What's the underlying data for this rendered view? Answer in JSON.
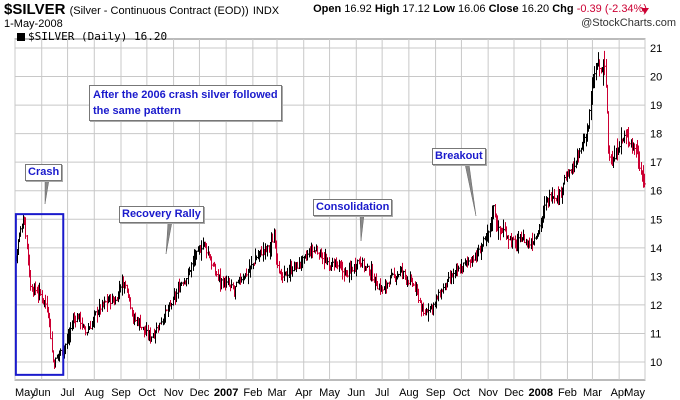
{
  "header": {
    "symbol": "$SILVER",
    "name": "(Silver - Continuous Contract (EOD))",
    "exchange": "INDX",
    "date": "1-May-2008",
    "open_label": "Open",
    "open": "16.92",
    "high_label": "High",
    "high": "17.12",
    "low_label": "Low",
    "low": "16.06",
    "close_label": "Close",
    "close": "16.20",
    "chg_label": "Chg",
    "chg": "-0.39 (-2.34%)",
    "credit": "@StockCharts.com"
  },
  "legend": {
    "text": "$SILVER (Daily) 16.20"
  },
  "annotations": {
    "note": [
      "After the 2006 crash silver followed",
      "the same pattern"
    ],
    "crash": "Crash",
    "recovery": "Recovery Rally",
    "consolidation": "Consolidation",
    "breakout": "Breakout"
  },
  "colors": {
    "up_bar": "#000000",
    "down_bar": "#cc0033",
    "grid": "#c8c8c8",
    "box": "#1a1acc",
    "annotation_text": "#1a1acc",
    "change_down": "#cc0033"
  },
  "chart_data": {
    "type": "line",
    "title": "$SILVER (Daily) 16.20",
    "xlabel": "",
    "ylabel": "",
    "x_start": "2006-05-01",
    "x_end": "2008-05-01",
    "ylim": [
      9.5,
      21.5
    ],
    "y_ticks": [
      10,
      11,
      12,
      13,
      14,
      15,
      16,
      17,
      18,
      19,
      20,
      21
    ],
    "x_tick_labels": [
      "May",
      "Jun",
      "Jul",
      "Aug",
      "Sep",
      "Oct",
      "Nov",
      "Dec",
      "2007",
      "Feb",
      "Mar",
      "Apr",
      "May",
      "Jun",
      "Jul",
      "Aug",
      "Sep",
      "Oct",
      "Nov",
      "Dec",
      "2008",
      "Feb",
      "Mar",
      "Apr",
      "May"
    ],
    "x_tick_dates": [
      "2006-05-01",
      "2006-06-01",
      "2006-07-01",
      "2006-08-01",
      "2006-09-01",
      "2006-10-01",
      "2006-11-01",
      "2006-12-01",
      "2007-01-01",
      "2007-02-01",
      "2007-03-01",
      "2007-04-01",
      "2007-05-01",
      "2007-06-01",
      "2007-07-01",
      "2007-08-01",
      "2007-09-01",
      "2007-10-01",
      "2007-11-01",
      "2007-12-01",
      "2008-01-01",
      "2008-02-01",
      "2008-03-01",
      "2008-04-01",
      "2008-05-01"
    ],
    "bold_tick_labels": [
      "2007",
      "2008"
    ],
    "grid": true,
    "series": [
      {
        "values": [
          {
            "date": "2006-05-01",
            "value": 13.6
          },
          {
            "date": "2006-05-05",
            "value": 14.3
          },
          {
            "date": "2006-05-11",
            "value": 15.1
          },
          {
            "date": "2006-05-15",
            "value": 14.0
          },
          {
            "date": "2006-05-19",
            "value": 12.6
          },
          {
            "date": "2006-05-26",
            "value": 12.5
          },
          {
            "date": "2006-06-01",
            "value": 12.3
          },
          {
            "date": "2006-06-06",
            "value": 12.0
          },
          {
            "date": "2006-06-09",
            "value": 11.7
          },
          {
            "date": "2006-06-13",
            "value": 10.2
          },
          {
            "date": "2006-06-15",
            "value": 9.9
          },
          {
            "date": "2006-06-20",
            "value": 10.3
          },
          {
            "date": "2006-06-26",
            "value": 10.4
          },
          {
            "date": "2006-07-03",
            "value": 11.0
          },
          {
            "date": "2006-07-07",
            "value": 11.5
          },
          {
            "date": "2006-07-14",
            "value": 11.6
          },
          {
            "date": "2006-07-21",
            "value": 11.0
          },
          {
            "date": "2006-07-28",
            "value": 11.3
          },
          {
            "date": "2006-08-04",
            "value": 11.8
          },
          {
            "date": "2006-08-11",
            "value": 12.0
          },
          {
            "date": "2006-08-18",
            "value": 12.2
          },
          {
            "date": "2006-08-25",
            "value": 12.1
          },
          {
            "date": "2006-09-01",
            "value": 12.8
          },
          {
            "date": "2006-09-08",
            "value": 12.6
          },
          {
            "date": "2006-09-15",
            "value": 11.5
          },
          {
            "date": "2006-09-22",
            "value": 11.4
          },
          {
            "date": "2006-09-29",
            "value": 11.0
          },
          {
            "date": "2006-10-06",
            "value": 10.9
          },
          {
            "date": "2006-10-13",
            "value": 11.2
          },
          {
            "date": "2006-10-20",
            "value": 11.6
          },
          {
            "date": "2006-10-27",
            "value": 11.9
          },
          {
            "date": "2006-11-03",
            "value": 12.3
          },
          {
            "date": "2006-11-10",
            "value": 12.8
          },
          {
            "date": "2006-11-17",
            "value": 13.0
          },
          {
            "date": "2006-11-24",
            "value": 13.6
          },
          {
            "date": "2006-12-01",
            "value": 13.9
          },
          {
            "date": "2006-12-05",
            "value": 14.2
          },
          {
            "date": "2006-12-11",
            "value": 13.8
          },
          {
            "date": "2006-12-18",
            "value": 13.2
          },
          {
            "date": "2006-12-27",
            "value": 12.8
          },
          {
            "date": "2007-01-03",
            "value": 12.7
          },
          {
            "date": "2007-01-10",
            "value": 12.5
          },
          {
            "date": "2007-01-17",
            "value": 12.9
          },
          {
            "date": "2007-01-24",
            "value": 13.1
          },
          {
            "date": "2007-01-31",
            "value": 13.4
          },
          {
            "date": "2007-02-07",
            "value": 13.8
          },
          {
            "date": "2007-02-14",
            "value": 13.9
          },
          {
            "date": "2007-02-21",
            "value": 14.0
          },
          {
            "date": "2007-02-26",
            "value": 14.5
          },
          {
            "date": "2007-03-01",
            "value": 13.6
          },
          {
            "date": "2007-03-05",
            "value": 12.9
          },
          {
            "date": "2007-03-12",
            "value": 13.1
          },
          {
            "date": "2007-03-19",
            "value": 13.3
          },
          {
            "date": "2007-03-26",
            "value": 13.4
          },
          {
            "date": "2007-04-02",
            "value": 13.6
          },
          {
            "date": "2007-04-09",
            "value": 13.9
          },
          {
            "date": "2007-04-16",
            "value": 13.9
          },
          {
            "date": "2007-04-23",
            "value": 13.7
          },
          {
            "date": "2007-04-30",
            "value": 13.3
          },
          {
            "date": "2007-05-07",
            "value": 13.5
          },
          {
            "date": "2007-05-14",
            "value": 13.2
          },
          {
            "date": "2007-05-21",
            "value": 13.1
          },
          {
            "date": "2007-05-28",
            "value": 13.3
          },
          {
            "date": "2007-06-04",
            "value": 13.6
          },
          {
            "date": "2007-06-11",
            "value": 13.3
          },
          {
            "date": "2007-06-18",
            "value": 13.1
          },
          {
            "date": "2007-06-25",
            "value": 12.7
          },
          {
            "date": "2007-07-02",
            "value": 12.5
          },
          {
            "date": "2007-07-09",
            "value": 12.9
          },
          {
            "date": "2007-07-16",
            "value": 13.0
          },
          {
            "date": "2007-07-23",
            "value": 13.2
          },
          {
            "date": "2007-07-30",
            "value": 12.9
          },
          {
            "date": "2007-08-06",
            "value": 12.7
          },
          {
            "date": "2007-08-13",
            "value": 12.2
          },
          {
            "date": "2007-08-17",
            "value": 11.6
          },
          {
            "date": "2007-08-23",
            "value": 11.9
          },
          {
            "date": "2007-08-30",
            "value": 12.0
          },
          {
            "date": "2007-09-06",
            "value": 12.4
          },
          {
            "date": "2007-09-13",
            "value": 12.7
          },
          {
            "date": "2007-09-20",
            "value": 13.0
          },
          {
            "date": "2007-09-27",
            "value": 13.2
          },
          {
            "date": "2007-10-04",
            "value": 13.4
          },
          {
            "date": "2007-10-11",
            "value": 13.6
          },
          {
            "date": "2007-10-18",
            "value": 13.7
          },
          {
            "date": "2007-10-25",
            "value": 14.1
          },
          {
            "date": "2007-11-01",
            "value": 14.5
          },
          {
            "date": "2007-11-07",
            "value": 15.4
          },
          {
            "date": "2007-11-12",
            "value": 14.6
          },
          {
            "date": "2007-11-19",
            "value": 14.6
          },
          {
            "date": "2007-11-26",
            "value": 14.3
          },
          {
            "date": "2007-12-03",
            "value": 14.1
          },
          {
            "date": "2007-12-10",
            "value": 14.4
          },
          {
            "date": "2007-12-17",
            "value": 14.1
          },
          {
            "date": "2007-12-24",
            "value": 14.3
          },
          {
            "date": "2007-12-31",
            "value": 14.8
          },
          {
            "date": "2008-01-07",
            "value": 15.6
          },
          {
            "date": "2008-01-14",
            "value": 15.9
          },
          {
            "date": "2008-01-21",
            "value": 15.7
          },
          {
            "date": "2008-01-28",
            "value": 16.4
          },
          {
            "date": "2008-02-04",
            "value": 16.6
          },
          {
            "date": "2008-02-11",
            "value": 17.0
          },
          {
            "date": "2008-02-18",
            "value": 17.6
          },
          {
            "date": "2008-02-25",
            "value": 18.3
          },
          {
            "date": "2008-02-29",
            "value": 19.5
          },
          {
            "date": "2008-03-04",
            "value": 20.2
          },
          {
            "date": "2008-03-07",
            "value": 20.5
          },
          {
            "date": "2008-03-11",
            "value": 20.1
          },
          {
            "date": "2008-03-14",
            "value": 20.6
          },
          {
            "date": "2008-03-17",
            "value": 19.4
          },
          {
            "date": "2008-03-19",
            "value": 17.5
          },
          {
            "date": "2008-03-24",
            "value": 16.9
          },
          {
            "date": "2008-03-31",
            "value": 17.6
          },
          {
            "date": "2008-04-07",
            "value": 17.9
          },
          {
            "date": "2008-04-14",
            "value": 17.7
          },
          {
            "date": "2008-04-21",
            "value": 17.4
          },
          {
            "date": "2008-04-25",
            "value": 16.8
          },
          {
            "date": "2008-05-01",
            "value": 16.2
          }
        ]
      }
    ]
  }
}
